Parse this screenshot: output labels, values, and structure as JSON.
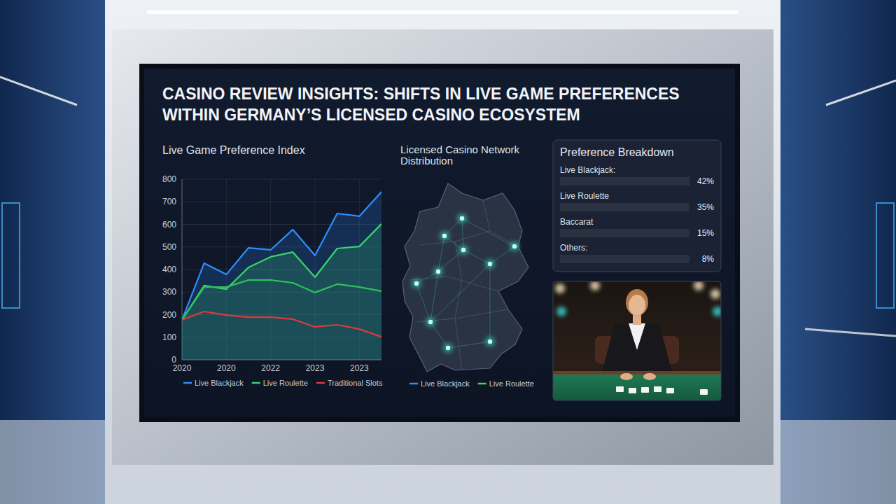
{
  "header": {
    "title": "CASINO REVIEW INSIGHTS: SHIFTS IN LIVE GAME PREFERENCES WITHIN GERMANY’S LICENSED CASINO ECOSYSTEM"
  },
  "chart_data": [
    {
      "type": "line",
      "title": "Live Game Preference Index",
      "categories": [
        "2020",
        null,
        "2020",
        null,
        "2022",
        null,
        "2023",
        null,
        "2023",
        null
      ],
      "series": [
        {
          "name": "Live Blackjack",
          "color": "#2f8cff",
          "type": "area",
          "values": [
            177,
            428,
            378,
            496,
            487,
            577,
            462,
            648,
            636,
            744
          ]
        },
        {
          "name": "Live Roulette",
          "color": "#37d46c",
          "type": "area",
          "values": [
            177,
            329,
            313,
            409,
            456,
            477,
            366,
            493,
            502,
            602
          ]
        },
        {
          "color": "#2ec05a",
          "type": "line",
          "values": [
            177,
            322,
            322,
            353,
            353,
            341,
            298,
            335,
            322,
            304
          ]
        },
        {
          "name": "Traditional Slots",
          "color": "#e0393e",
          "type": "line",
          "values": [
            177,
            214,
            198,
            189,
            189,
            180,
            146,
            155,
            136,
            102
          ]
        }
      ],
      "ylim": [
        0,
        800
      ],
      "yticks": [
        0,
        100,
        200,
        300,
        400,
        500,
        600,
        700,
        800
      ],
      "grid": true,
      "legend": "bottom"
    },
    {
      "type": "bar",
      "orientation": "horizontal",
      "title": "Preference Breakdown",
      "categories": [
        "Live Blackjack:",
        "Live Roulette",
        "Baccarat",
        "Others:"
      ],
      "values": [
        42,
        35,
        15,
        8
      ],
      "value_labels": [
        "42%",
        "35%",
        "15%",
        "8%"
      ],
      "colors": [
        "#2196f3",
        "#33cc55",
        "#9b59d6",
        "#6b7280"
      ],
      "xlim": [
        0,
        42
      ],
      "data_labels": true,
      "tick_labels": "y"
    }
  ],
  "map": {
    "title": "Licensed Casino Network Distribution",
    "legend": [
      {
        "name": "Live Blackjack",
        "color": "#2f8cff"
      },
      {
        "name": "Live Roulette",
        "color": "#37d46c"
      }
    ]
  }
}
